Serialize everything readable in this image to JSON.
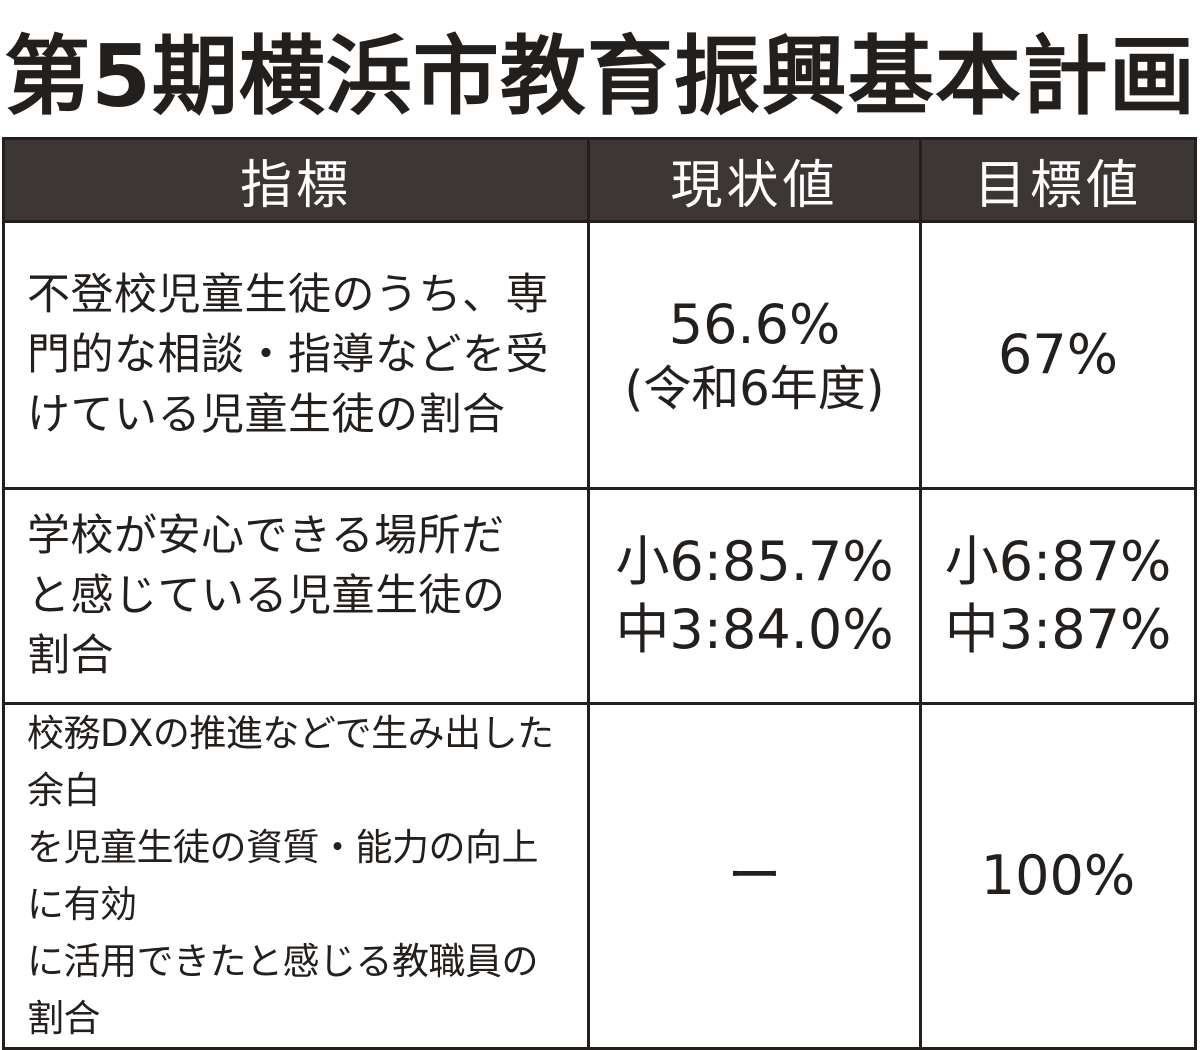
{
  "title": "第5期横浜市教育振興基本計画",
  "table": {
    "headers": {
      "indicator": "指標",
      "current": "現状値",
      "target": "目標値"
    },
    "rows": [
      {
        "indicator": "不登校児童生徒のうち、専\n門的な相談・指導などを受\nけている児童生徒の割合",
        "current_main": "56.6%",
        "current_note": "(令和6年度)",
        "target": "67%"
      },
      {
        "indicator": "学校が安心できる場所だ\nと感じている児童生徒の\n割合",
        "current": "小6:85.7%\n中3:84.0%",
        "target": "小6:87%\n中3:87%"
      },
      {
        "indicator": "校務DXの推進などで生み出した余白\nを児童生徒の資質・能力の向上に有効\nに活用できたと感じる教職員の割合",
        "current": "ー",
        "target": "100%"
      }
    ]
  }
}
